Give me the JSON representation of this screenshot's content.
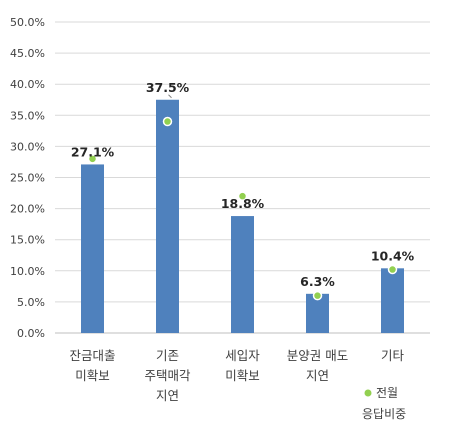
{
  "chart_data": {
    "type": "bar",
    "categories": [
      [
        "잔금대출",
        "미확보"
      ],
      [
        "기존",
        "주택매각",
        "지연"
      ],
      [
        "세입자",
        "미확보"
      ],
      [
        "분양권 매도",
        "지연"
      ],
      [
        "기타"
      ]
    ],
    "series": [
      {
        "values": [
          27.1,
          37.5,
          18.8,
          6.3,
          10.4
        ]
      },
      {
        "name": "전월 응답비중",
        "values": [
          28.0,
          34.0,
          22.0,
          6.0,
          10.2
        ]
      }
    ],
    "data_labels": [
      "27.1%",
      "37.5%",
      "18.8%",
      "6.3%",
      "10.4%"
    ],
    "y_ticks": [
      "0.0%",
      "5.0%",
      "10.0%",
      "15.0%",
      "20.0%",
      "25.0%",
      "30.0%",
      "35.0%",
      "40.0%",
      "45.0%",
      "50.0%"
    ],
    "ylim": [
      0,
      50
    ],
    "grid": true,
    "legend": {
      "position": "bottom-right",
      "lines": [
        "전월",
        "응답비중"
      ]
    },
    "colors": {
      "bar": "#4f81bd",
      "marker": "#92d050",
      "grid": "#d9d9d9",
      "axis": "#bfbfbf"
    }
  }
}
